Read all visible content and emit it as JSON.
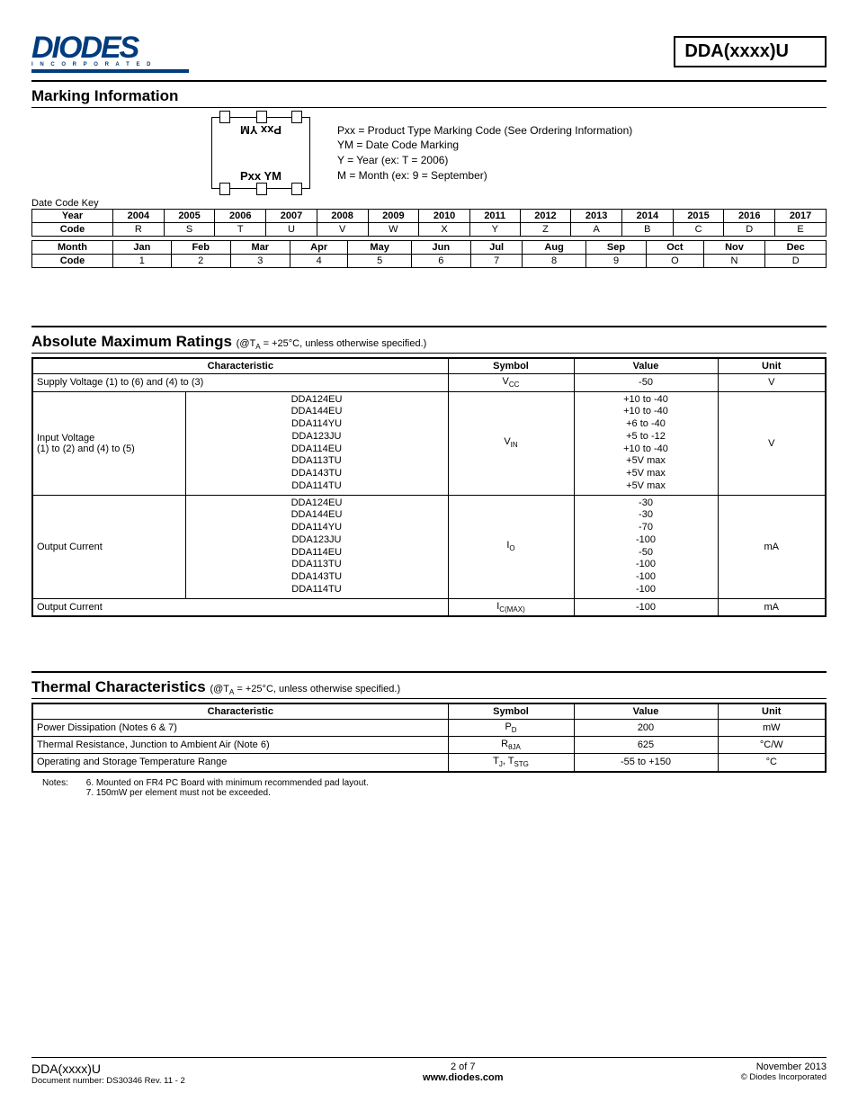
{
  "logo": {
    "brand": "DIODES",
    "sub": "I N C O R P O R A T E D"
  },
  "part_number": "DDA(xxxx)U",
  "sections": {
    "marking": {
      "title": "Marking Information",
      "chip_top": "Pxx  YM",
      "chip_bot": "Pxx  YM",
      "legend": [
        "Pxx = Product Type Marking Code (See Ordering Information)",
        "YM = Date Code Marking",
        "Y = Year (ex: T = 2006)",
        "M = Month (ex: 9 = September)"
      ],
      "datecode_label": "Date Code Key",
      "year_table": {
        "head": "Year",
        "code": "Code",
        "years": [
          "2004",
          "2005",
          "2006",
          "2007",
          "2008",
          "2009",
          "2010",
          "2011",
          "2012",
          "2013",
          "2014",
          "2015",
          "2016",
          "2017"
        ],
        "codes": [
          "R",
          "S",
          "T",
          "U",
          "V",
          "W",
          "X",
          "Y",
          "Z",
          "A",
          "B",
          "C",
          "D",
          "E"
        ]
      },
      "month_table": {
        "head": "Month",
        "code": "Code",
        "months": [
          "Jan",
          "Feb",
          "Mar",
          "Apr",
          "May",
          "Jun",
          "Jul",
          "Aug",
          "Sep",
          "Oct",
          "Nov",
          "Dec"
        ],
        "codes": [
          "1",
          "2",
          "3",
          "4",
          "5",
          "6",
          "7",
          "8",
          "9",
          "O",
          "N",
          "D"
        ]
      }
    },
    "abs_max": {
      "title": "Absolute Maximum Ratings",
      "cond": "(@T",
      "cond_sub": "A",
      "cond_rest": " = +25°C, unless otherwise specified.)",
      "headers": [
        "Characteristic",
        "Symbol",
        "Value",
        "Unit"
      ],
      "row1": {
        "char": "Supply Voltage (1) to (6) and (4) to (3)",
        "sym": "V",
        "sym_sub": "CC",
        "val": "-50",
        "unit": "V"
      },
      "row2": {
        "char_a": "Input Voltage",
        "char_b": "(1) to (2) and (4) to (5)",
        "parts": [
          "DDA124EU",
          "DDA144EU",
          "DDA114YU",
          "DDA123JU",
          "DDA114EU",
          "DDA113TU",
          "DDA143TU",
          "DDA114TU"
        ],
        "sym": "V",
        "sym_sub": "IN",
        "vals": [
          "+10 to -40",
          "+10 to -40",
          "+6 to -40",
          "+5 to -12",
          "+10 to -40",
          "+5V max",
          "+5V max",
          "+5V max"
        ],
        "unit": "V"
      },
      "row3": {
        "char": "Output Current",
        "parts": [
          "DDA124EU",
          "DDA144EU",
          "DDA114YU",
          "DDA123JU",
          "DDA114EU",
          "DDA113TU",
          "DDA143TU",
          "DDA114TU"
        ],
        "sym": "I",
        "sym_sub": "O",
        "vals": [
          "-30",
          "-30",
          "-70",
          "-100",
          "-50",
          "-100",
          "-100",
          "-100"
        ],
        "unit": "mA"
      },
      "row4": {
        "char": "Output Current",
        "sym": "I",
        "sym_sub": "C(MAX)",
        "val": "-100",
        "unit": "mA"
      }
    },
    "thermal": {
      "title": "Thermal Characteristics",
      "cond": "(@T",
      "cond_sub": "A",
      "cond_rest": " = +25°C, unless otherwise specified.)",
      "headers": [
        "Characteristic",
        "Symbol",
        "Value",
        "Unit"
      ],
      "rows": [
        {
          "char": "Power Dissipation (Notes 6 & 7)",
          "sym": "P",
          "sym_sub": "D",
          "val": "200",
          "unit": "mW"
        },
        {
          "char": "Thermal Resistance, Junction to Ambient Air (Note 6)",
          "sym": "R",
          "sym_sub": "θJA",
          "val": "625",
          "unit": "°C/W"
        },
        {
          "char": "Operating and Storage Temperature Range",
          "sym": "T",
          "sym_sub": "J",
          "sym2": ", T",
          "sym2_sub": "STG",
          "val": "-55 to +150",
          "unit": "°C"
        }
      ],
      "notes_label": "Notes:",
      "notes": [
        "6. Mounted on FR4 PC Board with minimum recommended pad layout.",
        "7. 150mW per element must not be exceeded."
      ]
    }
  },
  "footer": {
    "left_a": "DDA(xxxx)U",
    "left_b": "Document number: DS30346 Rev. 11 - 2",
    "mid_a": "2 of 7",
    "mid_b": "www.diodes.com",
    "right_a": "November 2013",
    "right_b": "© Diodes Incorporated"
  }
}
